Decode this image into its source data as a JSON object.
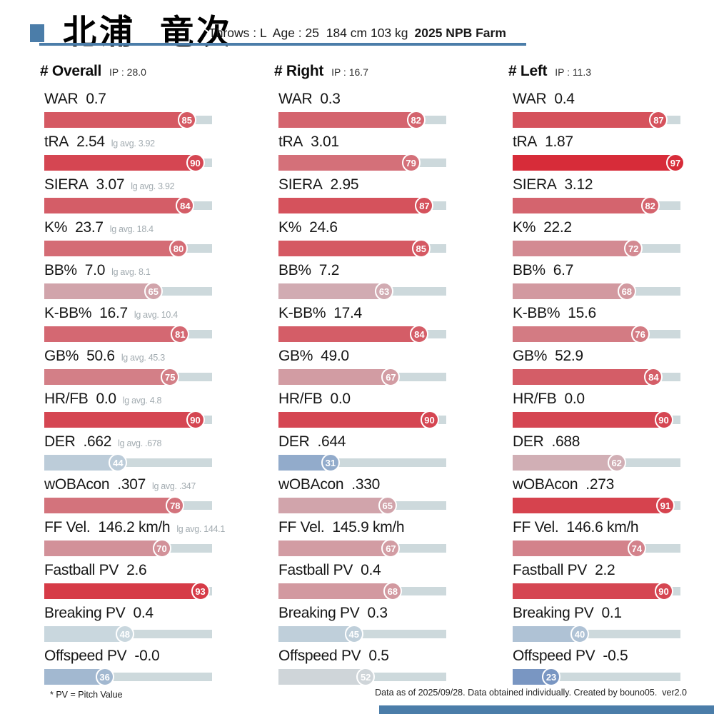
{
  "header": {
    "name": "北浦  竜次",
    "info": "Throws : L  Age : 25  184 cm 103 kg",
    "season": "2025 NPB Farm"
  },
  "colors": {
    "accent_blue": "#4b7da9",
    "scale_red_high": "#d7212e",
    "scale_mid_gray": "#cfdce0",
    "scale_blue_low": "#2f5aa8",
    "track": "#cdd9dc"
  },
  "chart_data": {
    "type": "bar",
    "title": "北浦 竜次 — 2025 NPB Farm pitching percentile card",
    "xlim": [
      0,
      100
    ],
    "note": "fill length = percentile (0-100); badge shows percentile; color scale blue(low)→gray(50)→red(high)",
    "groups": [
      {
        "name": "# Overall",
        "ip": "IP : 28.0",
        "rows": [
          {
            "label": "WAR",
            "value": "0.7",
            "lg_avg": "",
            "pct": 85
          },
          {
            "label": "tRA",
            "value": "2.54",
            "lg_avg": "lg avg. 3.92",
            "pct": 90
          },
          {
            "label": "SIERA",
            "value": "3.07",
            "lg_avg": "lg avg. 3.92",
            "pct": 84
          },
          {
            "label": "K%",
            "value": "23.7",
            "lg_avg": "lg avg. 18.4",
            "pct": 80
          },
          {
            "label": "BB%",
            "value": "7.0",
            "lg_avg": "lg avg. 8.1",
            "pct": 65
          },
          {
            "label": "K-BB%",
            "value": "16.7",
            "lg_avg": "lg avg. 10.4",
            "pct": 81
          },
          {
            "label": "GB%",
            "value": "50.6",
            "lg_avg": "lg avg. 45.3",
            "pct": 75
          },
          {
            "label": "HR/FB",
            "value": "0.0",
            "lg_avg": "lg avg. 4.8",
            "pct": 90
          },
          {
            "label": "DER",
            "value": ".662",
            "lg_avg": "lg avg. .678",
            "pct": 44
          },
          {
            "label": "wOBAcon",
            "value": ".307",
            "lg_avg": "lg avg. .347",
            "pct": 78
          },
          {
            "label": "FF Vel.",
            "value": "146.2 km/h",
            "lg_avg": "lg avg. 144.1",
            "pct": 70
          },
          {
            "label": "Fastball PV",
            "value": "2.6",
            "lg_avg": "",
            "pct": 93
          },
          {
            "label": "Breaking PV",
            "value": "0.4",
            "lg_avg": "",
            "pct": 48
          },
          {
            "label": "Offspeed PV",
            "value": "-0.0",
            "lg_avg": "",
            "pct": 36
          }
        ]
      },
      {
        "name": "# Right",
        "ip": "IP : 16.7",
        "rows": [
          {
            "label": "WAR",
            "value": "0.3",
            "lg_avg": "",
            "pct": 82
          },
          {
            "label": "tRA",
            "value": "3.01",
            "lg_avg": "",
            "pct": 79
          },
          {
            "label": "SIERA",
            "value": "2.95",
            "lg_avg": "",
            "pct": 87
          },
          {
            "label": "K%",
            "value": "24.6",
            "lg_avg": "",
            "pct": 85
          },
          {
            "label": "BB%",
            "value": "7.2",
            "lg_avg": "",
            "pct": 63
          },
          {
            "label": "K-BB%",
            "value": "17.4",
            "lg_avg": "",
            "pct": 84
          },
          {
            "label": "GB%",
            "value": "49.0",
            "lg_avg": "",
            "pct": 67
          },
          {
            "label": "HR/FB",
            "value": "0.0",
            "lg_avg": "",
            "pct": 90
          },
          {
            "label": "DER",
            "value": ".644",
            "lg_avg": "",
            "pct": 31
          },
          {
            "label": "wOBAcon",
            "value": ".330",
            "lg_avg": "",
            "pct": 65
          },
          {
            "label": "FF Vel.",
            "value": "145.9 km/h",
            "lg_avg": "",
            "pct": 67
          },
          {
            "label": "Fastball PV",
            "value": "0.4",
            "lg_avg": "",
            "pct": 68
          },
          {
            "label": "Breaking PV",
            "value": "0.3",
            "lg_avg": "",
            "pct": 45
          },
          {
            "label": "Offspeed PV",
            "value": "0.5",
            "lg_avg": "",
            "pct": 52
          }
        ]
      },
      {
        "name": "# Left",
        "ip": "IP : 11.3",
        "rows": [
          {
            "label": "WAR",
            "value": "0.4",
            "lg_avg": "",
            "pct": 87
          },
          {
            "label": "tRA",
            "value": "1.87",
            "lg_avg": "",
            "pct": 97
          },
          {
            "label": "SIERA",
            "value": "3.12",
            "lg_avg": "",
            "pct": 82
          },
          {
            "label": "K%",
            "value": "22.2",
            "lg_avg": "",
            "pct": 72
          },
          {
            "label": "BB%",
            "value": "6.7",
            "lg_avg": "",
            "pct": 68
          },
          {
            "label": "K-BB%",
            "value": "15.6",
            "lg_avg": "",
            "pct": 76
          },
          {
            "label": "GB%",
            "value": "52.9",
            "lg_avg": "",
            "pct": 84
          },
          {
            "label": "HR/FB",
            "value": "0.0",
            "lg_avg": "",
            "pct": 90
          },
          {
            "label": "DER",
            "value": ".688",
            "lg_avg": "",
            "pct": 62
          },
          {
            "label": "wOBAcon",
            "value": ".273",
            "lg_avg": "",
            "pct": 91
          },
          {
            "label": "FF Vel.",
            "value": "146.6 km/h",
            "lg_avg": "",
            "pct": 74
          },
          {
            "label": "Fastball PV",
            "value": "2.2",
            "lg_avg": "",
            "pct": 90
          },
          {
            "label": "Breaking PV",
            "value": "0.1",
            "lg_avg": "",
            "pct": 40
          },
          {
            "label": "Offspeed PV",
            "value": "-0.5",
            "lg_avg": "",
            "pct": 23
          }
        ]
      }
    ]
  },
  "footer": {
    "pv_note": "* PV = Pitch Value",
    "credit": "Data as of 2025/09/28. Data obtained individually. Created by bouno05.  ver2.0"
  }
}
